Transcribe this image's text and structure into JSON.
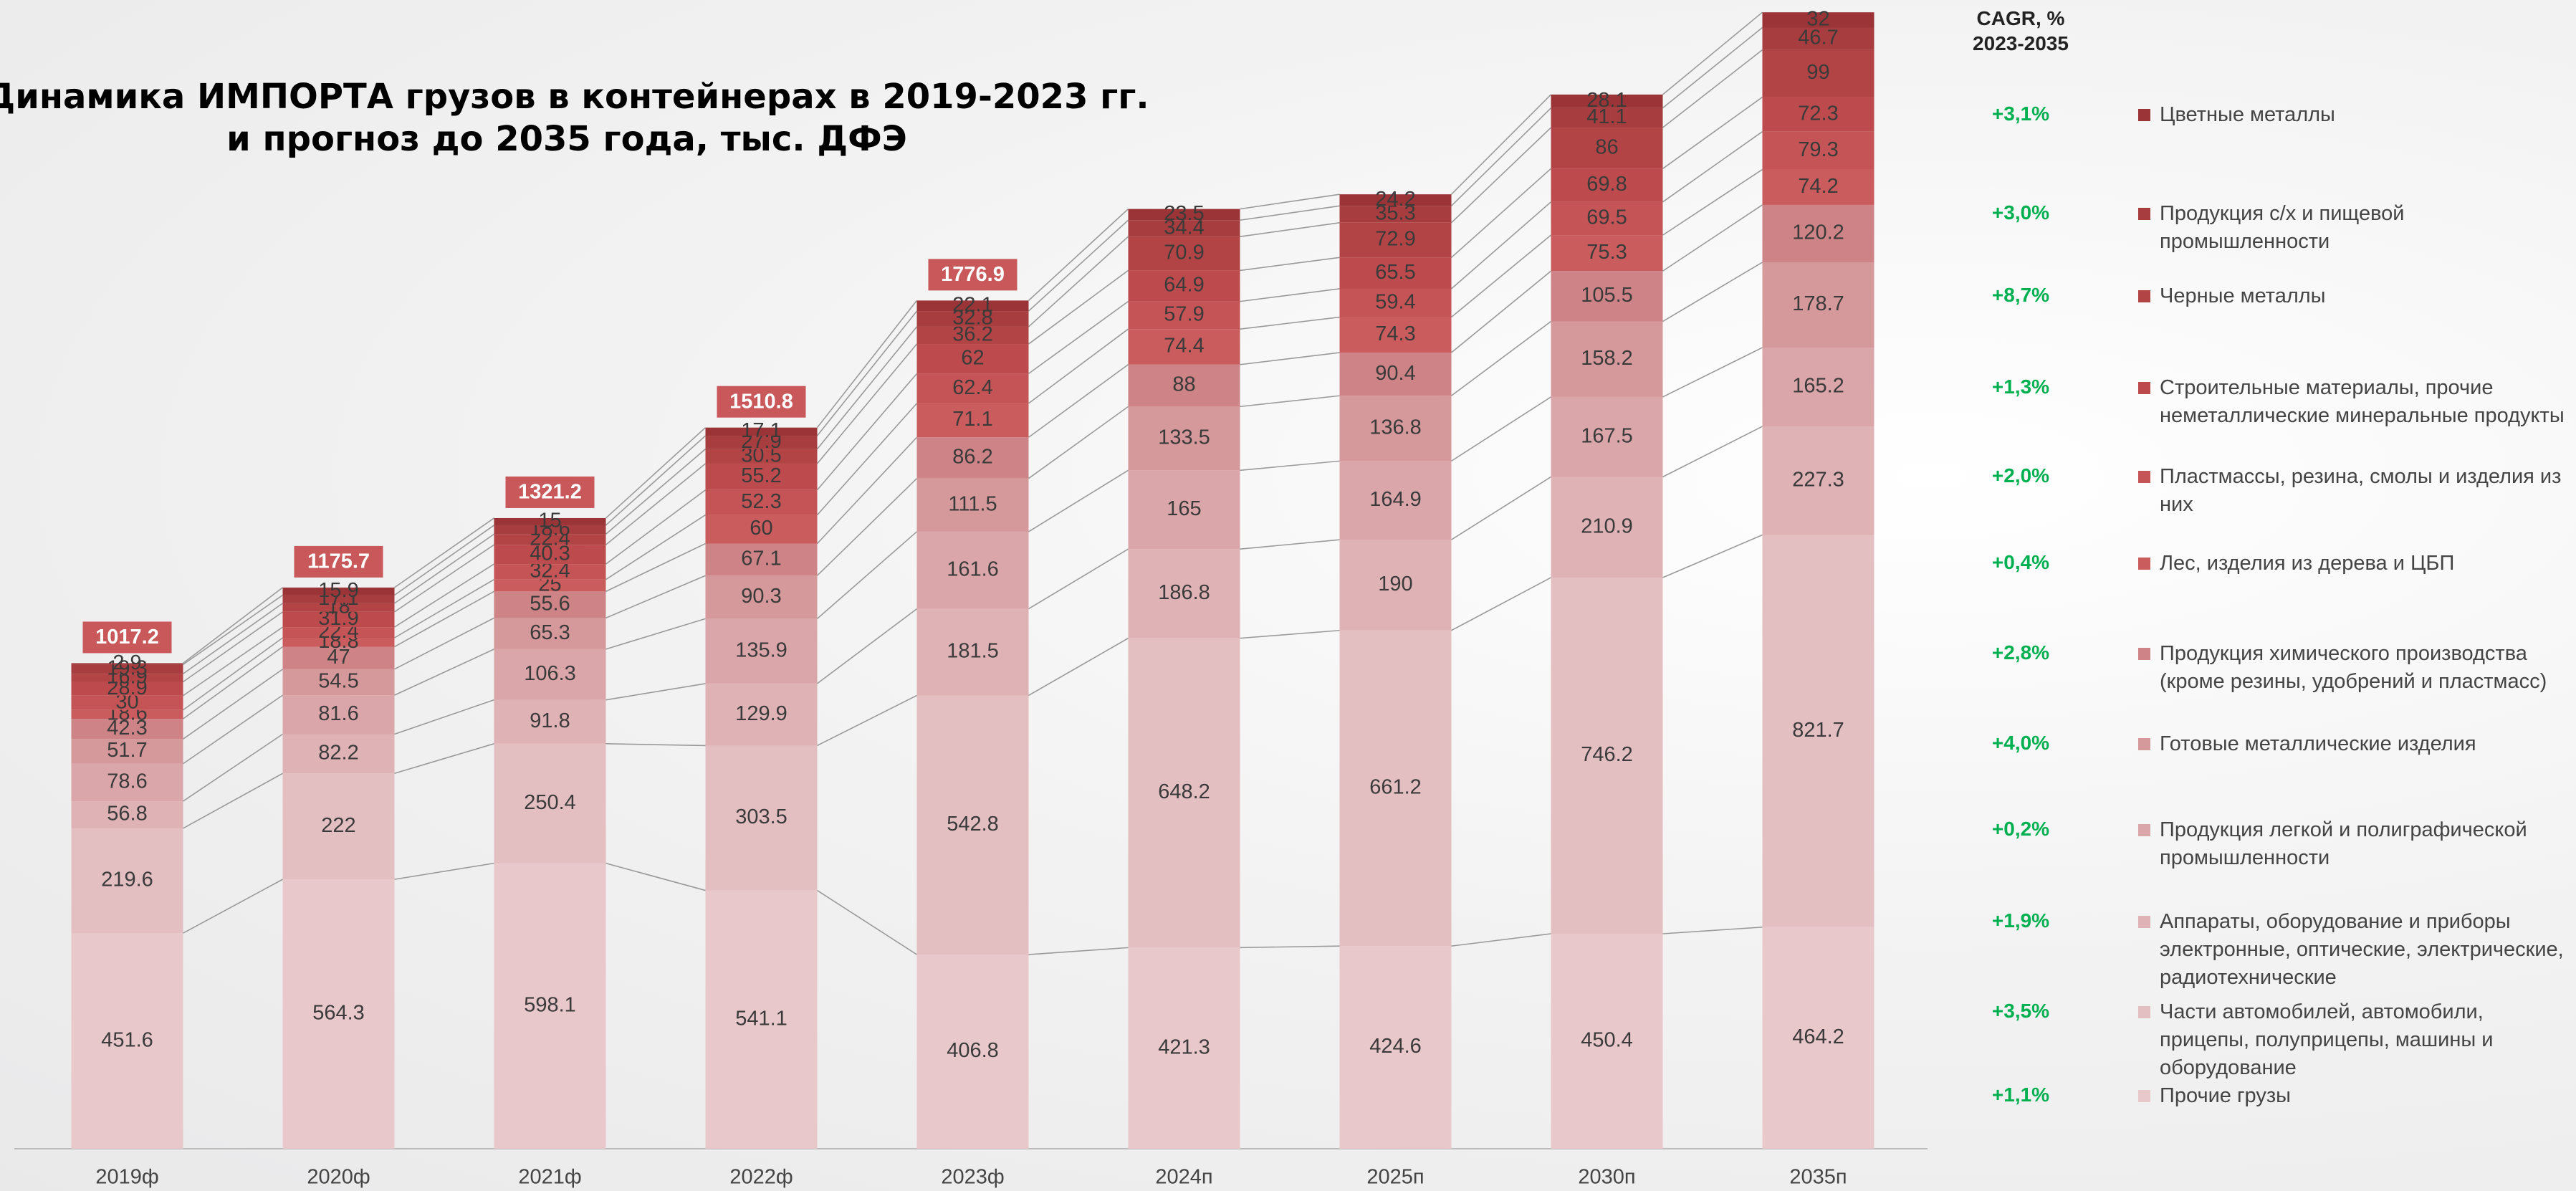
{
  "chart_data": {
    "type": "stacked_bar",
    "title": [
      "Динамика ИМПОРТА грузов в контейнерах в 2019-2023 гг.",
      "и прогноз до 2035 года, тыс. ДФЭ"
    ],
    "cagr_title": [
      "CAGR, %",
      "2023-2035"
    ],
    "categories": [
      "2019ф",
      "2020ф",
      "2021ф",
      "2022ф",
      "2023ф",
      "2024п",
      "2025п",
      "2030п",
      "2035п"
    ],
    "ylim": [
      0,
      2300
    ],
    "totals": [
      1017.2,
      1175.7,
      1321.2,
      1510.8,
      1776.9,
      null,
      null,
      null,
      null
    ],
    "series": [
      {
        "name": "Прочие грузы",
        "cagr": "+1,1%",
        "color": "#e8c8ca",
        "values": [
          451.6,
          564.3,
          598.1,
          541.1,
          406.8,
          421.3,
          424.6,
          450.4,
          464.2
        ]
      },
      {
        "name": "Части автомобилей, автомобили, прицепы, полуприцепы, машины и оборудование",
        "cagr": "+3,5%",
        "color": "#e4bfc2",
        "values": [
          219.6,
          222.0,
          250.4,
          303.5,
          542.8,
          648.2,
          661.2,
          746.2,
          821.7
        ]
      },
      {
        "name": "Аппараты, оборудование и приборы электронные, оптические, электрические, радиотехнические",
        "cagr": "+1,9%",
        "color": "#dfb2b5",
        "values": [
          56.8,
          82.2,
          91.8,
          129.9,
          181.5,
          186.8,
          190.0,
          210.9,
          227.3
        ]
      },
      {
        "name": "Продукция легкой и полиграфической промышленности",
        "cagr": "+0,2%",
        "color": "#daa6a9",
        "values": [
          78.6,
          81.6,
          106.3,
          135.9,
          161.6,
          165.0,
          164.9,
          167.5,
          165.2
        ]
      },
      {
        "name": "Готовые металлические изделия",
        "cagr": "+4,0%",
        "color": "#d5989b",
        "values": [
          51.7,
          54.5,
          65.3,
          90.3,
          111.5,
          133.5,
          136.8,
          158.2,
          178.7
        ]
      },
      {
        "name": "Продукция химического производства (кроме резины, удобрений и пластмасс)",
        "cagr": "+2,8%",
        "color": "#ce8487",
        "values": [
          42.3,
          47.0,
          55.6,
          67.1,
          86.2,
          88.0,
          90.4,
          105.5,
          120.2
        ]
      },
      {
        "name": "Лес, изделия из дерева и ЦБП",
        "cagr": "+0,4%",
        "color": "#ca5c5e",
        "values": [
          18.6,
          18.8,
          25.0,
          60.0,
          71.1,
          74.4,
          74.3,
          75.3,
          74.2
        ]
      },
      {
        "name": "Пластмассы, резина, смолы и изделия из них",
        "cagr": "+2,0%",
        "color": "#c55456",
        "values": [
          30.0,
          22.4,
          32.4,
          52.3,
          62.4,
          57.9,
          59.4,
          69.5,
          79.3
        ]
      },
      {
        "name": "Строительные материалы, прочие неметаллические минеральные продукты",
        "cagr": "+1,3%",
        "color": "#bd4b4d",
        "values": [
          28.9,
          31.9,
          40.3,
          55.2,
          62.0,
          64.9,
          65.5,
          69.8,
          72.3
        ]
      },
      {
        "name": "Черные металлы",
        "cagr": "+8,7%",
        "color": "#b34446",
        "values": [
          16.9,
          18.0,
          22.4,
          30.5,
          36.2,
          70.9,
          72.9,
          86.0,
          99.0
        ]
      },
      {
        "name": "Продукция с/х и пищевой промышленности",
        "cagr": "+3,0%",
        "color": "#a73d3f",
        "values": [
          19.3,
          17.1,
          18.6,
          27.9,
          32.8,
          34.4,
          35.3,
          41.1,
          46.7
        ]
      },
      {
        "name": "Цветные металлы",
        "cagr": "+3,1%",
        "color": "#9a3436",
        "values": [
          2.9,
          15.9,
          15.0,
          17.1,
          22.1,
          23.5,
          24.2,
          28.1,
          32.0
        ]
      }
    ]
  }
}
